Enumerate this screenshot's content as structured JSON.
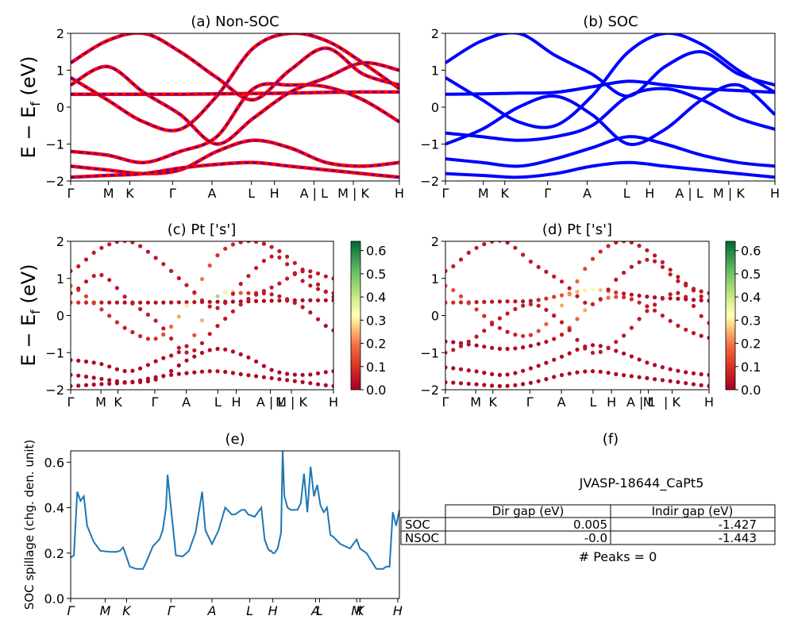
{
  "chart_data": [
    {
      "id": "a",
      "type": "line",
      "title": "(a) Non-SOC",
      "ylabel": "E − E_f (eV)",
      "ylim": [
        -2,
        2
      ],
      "yticks": [
        "2",
        "1",
        "0",
        "−1",
        "−2"
      ],
      "xticks": [
        {
          "x": 0,
          "label": "Γ"
        },
        {
          "x": 0.115,
          "label": "M"
        },
        {
          "x": 0.18,
          "label": "K"
        },
        {
          "x": 0.31,
          "label": "Γ"
        },
        {
          "x": 0.43,
          "label": "A"
        },
        {
          "x": 0.55,
          "label": "L"
        },
        {
          "x": 0.62,
          "label": "H"
        },
        {
          "x": 0.74,
          "label": "A | L"
        },
        {
          "x": 0.86,
          "label": "M | K"
        },
        {
          "x": 1.0,
          "label": "H"
        }
      ],
      "series": [
        {
          "y": [
            0.35,
            0.35,
            0.35,
            0.35,
            0.36,
            0.37,
            0.38,
            0.4,
            0.41,
            0.41
          ]
        },
        {
          "y": [
            0.8,
            0.2,
            -0.4,
            -0.6,
            0.3,
            1.6,
            2.0,
            1.8,
            1.2,
            0.5
          ]
        },
        {
          "y": [
            -1.2,
            -1.3,
            -1.5,
            -1.2,
            -0.8,
            0.5,
            0.6,
            0.55,
            0.2,
            -0.4
          ]
        },
        {
          "y": [
            -1.6,
            -1.7,
            -1.8,
            -1.7,
            -1.2,
            -0.9,
            -1.1,
            -1.5,
            -1.6,
            -1.5
          ]
        },
        {
          "y": [
            1.2,
            1.8,
            2.0,
            1.5,
            0.8,
            0.2,
            1.0,
            1.6,
            0.9,
            0.6
          ]
        },
        {
          "y": [
            -1.9,
            -1.85,
            -1.8,
            -1.65,
            -1.55,
            -1.5,
            -1.6,
            -1.7,
            -1.8,
            -1.9
          ]
        },
        {
          "y": [
            0.6,
            1.1,
            0.4,
            -0.2,
            -1.0,
            -0.3,
            0.4,
            0.8,
            1.2,
            1.0
          ]
        }
      ]
    },
    {
      "id": "b",
      "type": "line",
      "title": "(b) SOC",
      "ylim": [
        -2,
        2
      ],
      "yticks": [
        "2",
        "1",
        "0",
        "−1",
        "−2"
      ],
      "xticks": [
        {
          "x": 0,
          "label": "Γ"
        },
        {
          "x": 0.115,
          "label": "M"
        },
        {
          "x": 0.18,
          "label": "K"
        },
        {
          "x": 0.31,
          "label": "Γ"
        },
        {
          "x": 0.43,
          "label": "A"
        },
        {
          "x": 0.55,
          "label": "L"
        },
        {
          "x": 0.62,
          "label": "H"
        },
        {
          "x": 0.74,
          "label": "A | L"
        },
        {
          "x": 0.86,
          "label": "M | K"
        },
        {
          "x": 1.0,
          "label": "H"
        }
      ],
      "series": [
        {
          "y": [
            0.35,
            0.36,
            0.38,
            0.4,
            0.55,
            0.7,
            0.6,
            0.5,
            0.45,
            0.4
          ]
        },
        {
          "y": [
            0.8,
            0.2,
            -0.4,
            -0.5,
            0.3,
            1.5,
            2.0,
            1.7,
            1.0,
            0.4
          ]
        },
        {
          "y": [
            -0.7,
            -0.8,
            -0.9,
            -0.8,
            -0.5,
            0.3,
            0.5,
            0.2,
            -0.3,
            -0.6
          ]
        },
        {
          "y": [
            -1.4,
            -1.5,
            -1.6,
            -1.4,
            -1.1,
            -0.8,
            -1.0,
            -1.3,
            -1.5,
            -1.6
          ]
        },
        {
          "y": [
            -1.8,
            -1.85,
            -1.9,
            -1.8,
            -1.6,
            -1.5,
            -1.6,
            -1.7,
            -1.8,
            -1.9
          ]
        },
        {
          "y": [
            1.2,
            1.8,
            2.0,
            1.4,
            0.9,
            0.3,
            1.1,
            1.5,
            0.9,
            0.6
          ]
        },
        {
          "y": [
            -1.0,
            -0.6,
            0.0,
            0.3,
            -0.2,
            -1.0,
            -0.6,
            0.2,
            0.6,
            -0.2
          ]
        }
      ]
    },
    {
      "id": "c",
      "type": "scatter",
      "title": "(c)  Pt ['s']",
      "ylabel": "E − E_f (eV)",
      "ylim": [
        -2,
        2
      ],
      "yticks": [
        "2",
        "1",
        "0",
        "−1",
        "−2"
      ],
      "xticks": [
        {
          "x": 0,
          "label": "Γ"
        },
        {
          "x": 0.115,
          "label": "M"
        },
        {
          "x": 0.18,
          "label": "K"
        },
        {
          "x": 0.32,
          "label": "Γ"
        },
        {
          "x": 0.44,
          "label": "A"
        },
        {
          "x": 0.56,
          "label": "L"
        },
        {
          "x": 0.63,
          "label": "H"
        },
        {
          "x": 0.76,
          "label": "A | L"
        },
        {
          "x": 0.84,
          "label": "M | K"
        },
        {
          "x": 1.0,
          "label": "H"
        }
      ],
      "colorbar": {
        "ticks": [
          "0.0",
          "0.1",
          "0.2",
          "0.3",
          "0.4",
          "0.5",
          "0.6"
        ],
        "min": 0,
        "max": 0.64
      },
      "series": [
        {
          "y": [
            0.35,
            0.35,
            0.35,
            0.35,
            0.36,
            0.37,
            0.38,
            0.4,
            0.41,
            0.41
          ],
          "w": [
            0.1,
            0.05,
            0.03,
            0.02,
            0.05,
            0.02,
            0.02,
            0.02,
            0.02,
            0.02
          ]
        },
        {
          "y": [
            0.8,
            0.2,
            -0.4,
            -0.6,
            0.3,
            1.6,
            2.0,
            1.8,
            1.2,
            0.5
          ],
          "w": [
            0.15,
            0.1,
            0.05,
            0.1,
            0.3,
            0.1,
            0.05,
            0.05,
            0.05,
            0.05
          ]
        },
        {
          "y": [
            -1.2,
            -1.3,
            -1.5,
            -1.2,
            -0.8,
            0.5,
            0.6,
            0.55,
            0.2,
            -0.4
          ],
          "w": [
            0.02,
            0.02,
            0.02,
            0.02,
            0.05,
            0.45,
            0.1,
            0.05,
            0.05,
            0.02
          ]
        },
        {
          "y": [
            -1.6,
            -1.7,
            -1.8,
            -1.7,
            -1.2,
            -0.9,
            -1.1,
            -1.5,
            -1.6,
            -1.5
          ],
          "w": [
            0.02,
            0.02,
            0.02,
            0.02,
            0.02,
            0.02,
            0.02,
            0.02,
            0.02,
            0.02
          ]
        },
        {
          "y": [
            1.2,
            1.8,
            2.0,
            1.5,
            0.8,
            0.2,
            1.0,
            1.6,
            0.9,
            0.6
          ],
          "w": [
            0.05,
            0.05,
            0.05,
            0.05,
            0.05,
            0.05,
            0.05,
            0.05,
            0.05,
            0.05
          ]
        },
        {
          "y": [
            -1.9,
            -1.85,
            -1.8,
            -1.65,
            -1.55,
            -1.5,
            -1.6,
            -1.7,
            -1.8,
            -1.9
          ],
          "w": [
            0.02,
            0.02,
            0.02,
            0.02,
            0.02,
            0.02,
            0.02,
            0.02,
            0.02,
            0.02
          ]
        },
        {
          "y": [
            0.6,
            1.1,
            0.4,
            -0.2,
            -1.0,
            -0.3,
            0.4,
            0.8,
            1.2,
            1.0
          ],
          "w": [
            0.05,
            0.05,
            0.05,
            0.05,
            0.05,
            0.05,
            0.05,
            0.05,
            0.05,
            0.05
          ]
        }
      ]
    },
    {
      "id": "d",
      "type": "scatter",
      "title": "(d) Pt ['s']",
      "ylim": [
        -2,
        2
      ],
      "yticks": [
        "2",
        "1",
        "0",
        "−1",
        "−2"
      ],
      "xticks": [
        {
          "x": 0,
          "label": "Γ"
        },
        {
          "x": 0.115,
          "label": "M"
        },
        {
          "x": 0.18,
          "label": "K"
        },
        {
          "x": 0.32,
          "label": "Γ"
        },
        {
          "x": 0.44,
          "label": "A"
        },
        {
          "x": 0.56,
          "label": "L"
        },
        {
          "x": 0.63,
          "label": "H"
        },
        {
          "x": 0.74,
          "label": "A | L"
        },
        {
          "x": 0.77,
          "label": "M"
        },
        {
          "x": 0.86,
          "label": "| K"
        },
        {
          "x": 1.0,
          "label": "H"
        }
      ],
      "colorbar": {
        "ticks": [
          "0.0",
          "0.1",
          "0.2",
          "0.3",
          "0.4",
          "0.5",
          "0.6"
        ],
        "min": 0,
        "max": 0.64
      },
      "series": [
        {
          "y": [
            0.35,
            0.36,
            0.38,
            0.4,
            0.55,
            0.7,
            0.6,
            0.5,
            0.45,
            0.4
          ],
          "w": [
            0.1,
            0.05,
            0.03,
            0.05,
            0.15,
            0.35,
            0.05,
            0.02,
            0.02,
            0.02
          ]
        },
        {
          "y": [
            0.8,
            0.2,
            -0.4,
            -0.5,
            0.3,
            1.5,
            2.0,
            1.7,
            1.0,
            0.4
          ],
          "w": [
            0.15,
            0.1,
            0.05,
            0.1,
            0.25,
            0.1,
            0.05,
            0.05,
            0.05,
            0.05
          ]
        },
        {
          "y": [
            -0.7,
            -0.8,
            -0.9,
            -0.8,
            -0.5,
            0.3,
            0.5,
            0.2,
            -0.3,
            -0.6
          ],
          "w": [
            0.02,
            0.02,
            0.02,
            0.02,
            0.05,
            0.3,
            0.1,
            0.05,
            0.05,
            0.02
          ]
        },
        {
          "y": [
            -1.4,
            -1.5,
            -1.6,
            -1.4,
            -1.1,
            -0.8,
            -1.0,
            -1.3,
            -1.5,
            -1.6
          ],
          "w": [
            0.02,
            0.02,
            0.02,
            0.02,
            0.02,
            0.02,
            0.02,
            0.02,
            0.02,
            0.02
          ]
        },
        {
          "y": [
            -1.8,
            -1.85,
            -1.9,
            -1.8,
            -1.6,
            -1.5,
            -1.6,
            -1.7,
            -1.8,
            -1.9
          ],
          "w": [
            0.02,
            0.02,
            0.02,
            0.02,
            0.02,
            0.02,
            0.02,
            0.02,
            0.02,
            0.02
          ]
        },
        {
          "y": [
            1.2,
            1.8,
            2.0,
            1.4,
            0.9,
            0.3,
            1.1,
            1.5,
            0.9,
            0.6
          ],
          "w": [
            0.05,
            0.05,
            0.05,
            0.05,
            0.05,
            0.05,
            0.05,
            0.05,
            0.05,
            0.05
          ]
        },
        {
          "y": [
            -1.0,
            -0.6,
            0.0,
            0.3,
            -0.2,
            -1.0,
            -0.6,
            0.2,
            0.6,
            -0.2
          ],
          "w": [
            0.05,
            0.05,
            0.05,
            0.05,
            0.05,
            0.05,
            0.05,
            0.05,
            0.05,
            0.05
          ]
        }
      ]
    },
    {
      "id": "e",
      "type": "line",
      "title": "(e)",
      "ylabel": "SOC spillage (chg. den. unit)",
      "ylim": [
        0,
        0.65
      ],
      "yticks": [
        {
          "v": 0.0,
          "label": "0.0"
        },
        {
          "v": 0.2,
          "label": "0.2"
        },
        {
          "v": 0.4,
          "label": "0.4"
        },
        {
          "v": 0.6,
          "label": "0.6"
        }
      ],
      "xticks": [
        {
          "x": 0,
          "label": "Γ"
        },
        {
          "x": 0.105,
          "label": "M"
        },
        {
          "x": 0.17,
          "label": "K"
        },
        {
          "x": 0.305,
          "label": "Γ"
        },
        {
          "x": 0.43,
          "label": "A"
        },
        {
          "x": 0.545,
          "label": "L"
        },
        {
          "x": 0.615,
          "label": "H"
        },
        {
          "x": 0.745,
          "label": "A"
        },
        {
          "x": 0.757,
          "label": "L"
        },
        {
          "x": 0.87,
          "label": "M"
        },
        {
          "x": 0.88,
          "label": "K"
        },
        {
          "x": 0.995,
          "label": "H"
        }
      ],
      "x": [
        0,
        0.01,
        0.02,
        0.03,
        0.04,
        0.05,
        0.07,
        0.09,
        0.12,
        0.14,
        0.15,
        0.16,
        0.18,
        0.2,
        0.22,
        0.23,
        0.25,
        0.27,
        0.28,
        0.29,
        0.295,
        0.3,
        0.32,
        0.34,
        0.345,
        0.36,
        0.38,
        0.4,
        0.41,
        0.43,
        0.45,
        0.47,
        0.49,
        0.5,
        0.51,
        0.52,
        0.53,
        0.54,
        0.56,
        0.58,
        0.59,
        0.6,
        0.605,
        0.61,
        0.615,
        0.62,
        0.63,
        0.64,
        0.645,
        0.65,
        0.66,
        0.67,
        0.68,
        0.69,
        0.7,
        0.71,
        0.72,
        0.73,
        0.74,
        0.75,
        0.76,
        0.77,
        0.78,
        0.79,
        0.8,
        0.82,
        0.85,
        0.87,
        0.88,
        0.9,
        0.93,
        0.95,
        0.96,
        0.97,
        0.98,
        0.99,
        1.0
      ],
      "y": [
        0.18,
        0.19,
        0.47,
        0.43,
        0.45,
        0.32,
        0.25,
        0.21,
        0.205,
        0.205,
        0.21,
        0.225,
        0.14,
        0.13,
        0.13,
        0.16,
        0.23,
        0.26,
        0.3,
        0.4,
        0.545,
        0.47,
        0.19,
        0.185,
        0.19,
        0.21,
        0.29,
        0.47,
        0.3,
        0.24,
        0.3,
        0.4,
        0.37,
        0.37,
        0.38,
        0.39,
        0.39,
        0.37,
        0.36,
        0.4,
        0.26,
        0.22,
        0.21,
        0.21,
        0.2,
        0.2,
        0.22,
        0.29,
        0.65,
        0.45,
        0.4,
        0.39,
        0.39,
        0.39,
        0.42,
        0.55,
        0.38,
        0.58,
        0.45,
        0.5,
        0.41,
        0.38,
        0.4,
        0.28,
        0.27,
        0.24,
        0.22,
        0.26,
        0.22,
        0.2,
        0.13,
        0.13,
        0.14,
        0.14,
        0.38,
        0.32,
        0.39
      ]
    }
  ],
  "panel_f": {
    "title": "(f)",
    "name": "JVASP-18644_CaPt5",
    "table": {
      "headers": [
        "Dir gap (eV)",
        "Indir gap (eV)"
      ],
      "rows": [
        {
          "label": "SOC",
          "dir": "0.005",
          "indir": "-1.427"
        },
        {
          "label": "NSOC",
          "dir": "-0.0",
          "indir": "-1.443"
        }
      ]
    },
    "peaks": "# Peaks = 0"
  },
  "colors": {
    "nonsoc_line": "#ff0000",
    "nonsoc_dash": "#0000ff",
    "soc_line": "#0000ff",
    "spillage_line": "#1f77b4"
  }
}
